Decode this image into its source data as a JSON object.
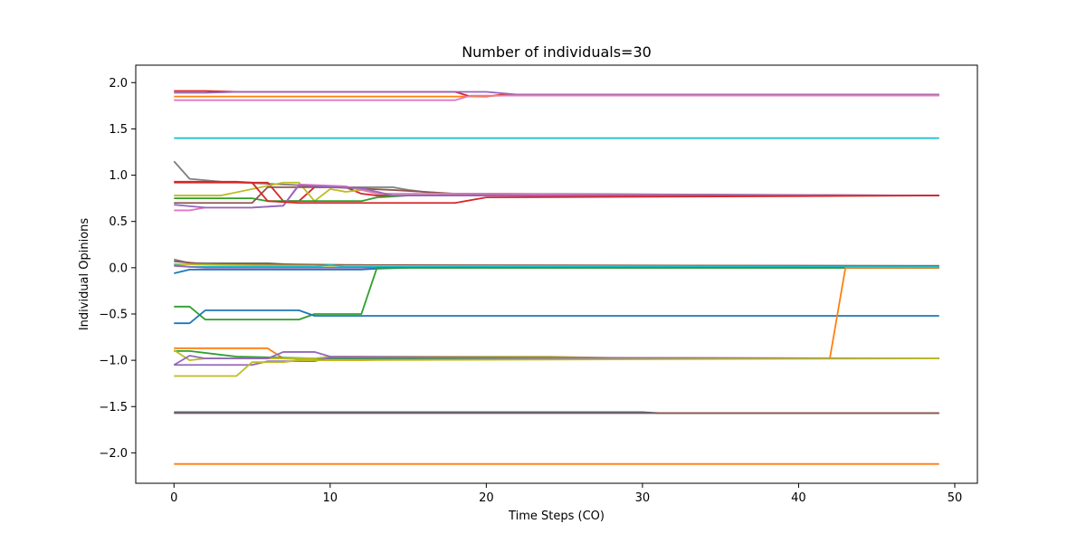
{
  "chart_data": {
    "type": "line",
    "title": "Number of individuals=30",
    "xlabel": "Time Steps (CO)",
    "ylabel": "Individual Opinions",
    "xlim": [
      -2.45,
      51.45
    ],
    "ylim": [
      -2.3285,
      2.1885
    ],
    "xticks": [
      0,
      10,
      20,
      30,
      40,
      50
    ],
    "yticks": [
      -2.0,
      -1.5,
      -1.0,
      -0.5,
      0.0,
      0.5,
      1.0,
      1.5,
      2.0
    ],
    "ytick_labels": [
      "−2.0",
      "−1.5",
      "−1.0",
      "−0.5",
      "0.0",
      "0.5",
      "1.0",
      "1.5",
      "2.0"
    ],
    "grid": false,
    "legend": "none",
    "series": [
      {
        "color": "#d62728",
        "points": [
          [
            0,
            1.91
          ],
          [
            2,
            1.91
          ],
          [
            4,
            1.9
          ],
          [
            18,
            1.9
          ],
          [
            19,
            1.85
          ],
          [
            20,
            1.85
          ],
          [
            21,
            1.87
          ],
          [
            49,
            1.87
          ]
        ]
      },
      {
        "color": "#9467bd",
        "points": [
          [
            0,
            1.89
          ],
          [
            2,
            1.89
          ],
          [
            4,
            1.9
          ],
          [
            20,
            1.9
          ],
          [
            22,
            1.87
          ],
          [
            49,
            1.87
          ]
        ]
      },
      {
        "color": "#ff7f0e",
        "points": [
          [
            0,
            1.85
          ],
          [
            19,
            1.85
          ],
          [
            21,
            1.86
          ],
          [
            49,
            1.86
          ]
        ]
      },
      {
        "color": "#e377c2",
        "points": [
          [
            0,
            1.81
          ],
          [
            18,
            1.81
          ],
          [
            19,
            1.86
          ],
          [
            49,
            1.86
          ]
        ]
      },
      {
        "color": "#17becf",
        "points": [
          [
            0,
            1.4
          ],
          [
            49,
            1.4
          ]
        ]
      },
      {
        "color": "#7f7f7f",
        "points": [
          [
            0,
            1.15
          ],
          [
            1,
            0.96
          ],
          [
            3,
            0.93
          ],
          [
            11,
            0.87
          ],
          [
            14,
            0.87
          ],
          [
            15,
            0.84
          ],
          [
            17,
            0.8
          ],
          [
            20,
            0.8
          ],
          [
            49,
            0.78
          ]
        ]
      },
      {
        "color": "#d62728",
        "points": [
          [
            0,
            0.92
          ],
          [
            6,
            0.92
          ],
          [
            7,
            0.72
          ],
          [
            8,
            0.72
          ],
          [
            9,
            0.87
          ],
          [
            11,
            0.87
          ],
          [
            12,
            0.8
          ],
          [
            13,
            0.78
          ],
          [
            49,
            0.78
          ]
        ]
      },
      {
        "color": "#bcbd22",
        "points": [
          [
            0,
            0.78
          ],
          [
            3,
            0.78
          ],
          [
            7,
            0.92
          ],
          [
            8,
            0.92
          ],
          [
            9,
            0.72
          ],
          [
            10,
            0.85
          ],
          [
            11,
            0.82
          ],
          [
            12,
            0.84
          ],
          [
            13,
            0.82
          ],
          [
            14,
            0.78
          ],
          [
            49,
            0.78
          ]
        ]
      },
      {
        "color": "#2ca02c",
        "points": [
          [
            0,
            0.75
          ],
          [
            5,
            0.75
          ],
          [
            6,
            0.72
          ],
          [
            8,
            0.72
          ],
          [
            12,
            0.72
          ],
          [
            13,
            0.76
          ],
          [
            15,
            0.78
          ],
          [
            49,
            0.78
          ]
        ]
      },
      {
        "color": "#8c564b",
        "points": [
          [
            0,
            0.7
          ],
          [
            5,
            0.7
          ],
          [
            6,
            0.87
          ],
          [
            10,
            0.87
          ],
          [
            14,
            0.84
          ],
          [
            18,
            0.8
          ],
          [
            49,
            0.78
          ]
        ]
      },
      {
        "color": "#e377c2",
        "points": [
          [
            0,
            0.62
          ],
          [
            1,
            0.62
          ],
          [
            2,
            0.65
          ],
          [
            5,
            0.65
          ],
          [
            7,
            0.67
          ],
          [
            8,
            0.9
          ],
          [
            11,
            0.88
          ],
          [
            13,
            0.8
          ],
          [
            21,
            0.8
          ],
          [
            26,
            0.79
          ],
          [
            49,
            0.78
          ]
        ]
      },
      {
        "color": "#9467bd",
        "points": [
          [
            0,
            0.68
          ],
          [
            2,
            0.65
          ],
          [
            5,
            0.65
          ],
          [
            7,
            0.67
          ],
          [
            8,
            0.89
          ],
          [
            12,
            0.86
          ],
          [
            14,
            0.78
          ],
          [
            49,
            0.78
          ]
        ]
      },
      {
        "color": "#d62728",
        "points": [
          [
            0,
            0.93
          ],
          [
            4,
            0.93
          ],
          [
            5,
            0.92
          ],
          [
            6,
            0.72
          ],
          [
            8,
            0.7
          ],
          [
            18,
            0.7
          ],
          [
            20,
            0.76
          ],
          [
            49,
            0.78
          ]
        ]
      },
      {
        "color": "#7f7f7f",
        "points": [
          [
            0,
            0.09
          ],
          [
            1,
            0.05
          ],
          [
            6,
            0.05
          ],
          [
            8,
            0.03
          ],
          [
            12,
            0.03
          ],
          [
            13,
            0.02
          ],
          [
            49,
            0.02
          ]
        ]
      },
      {
        "color": "#8c564b",
        "points": [
          [
            0,
            0.07
          ],
          [
            2,
            0.04
          ],
          [
            6,
            0.04
          ],
          [
            11,
            0.03
          ],
          [
            49,
            0.02
          ]
        ]
      },
      {
        "color": "#bcbd22",
        "points": [
          [
            0,
            0.04
          ],
          [
            3,
            0.03
          ],
          [
            10,
            0.02
          ],
          [
            49,
            0.01
          ]
        ]
      },
      {
        "color": "#17becf",
        "points": [
          [
            0,
            0.03
          ],
          [
            1,
            0.01
          ],
          [
            9,
            0.01
          ],
          [
            10,
            0.03
          ],
          [
            11,
            0.01
          ],
          [
            49,
            0.01
          ]
        ]
      },
      {
        "color": "#9467bd",
        "points": [
          [
            0,
            0.02
          ],
          [
            2,
            0.0
          ],
          [
            49,
            0.0
          ]
        ]
      },
      {
        "color": "#1f77b4",
        "points": [
          [
            0,
            -0.06
          ],
          [
            1,
            -0.02
          ],
          [
            12,
            -0.02
          ],
          [
            13,
            -0.01
          ],
          [
            15,
            0.0
          ],
          [
            49,
            0.0
          ]
        ]
      },
      {
        "color": "#2ca02c",
        "points": [
          [
            0,
            -0.42
          ],
          [
            1,
            -0.42
          ],
          [
            2,
            -0.56
          ],
          [
            8,
            -0.56
          ],
          [
            9,
            -0.5
          ],
          [
            12,
            -0.5
          ],
          [
            13,
            0.0
          ],
          [
            49,
            0.0
          ]
        ]
      },
      {
        "color": "#1f77b4",
        "points": [
          [
            0,
            -0.6
          ],
          [
            1,
            -0.6
          ],
          [
            2,
            -0.46
          ],
          [
            8,
            -0.46
          ],
          [
            9,
            -0.52
          ],
          [
            49,
            -0.52
          ]
        ]
      },
      {
        "color": "#ff7f0e",
        "points": [
          [
            0,
            -0.87
          ],
          [
            6,
            -0.87
          ],
          [
            7,
            -0.98
          ],
          [
            10,
            -1.0
          ],
          [
            12,
            -1.0
          ],
          [
            14,
            -0.99
          ],
          [
            20,
            -0.98
          ],
          [
            42,
            -0.98
          ],
          [
            43,
            0.0
          ],
          [
            49,
            0.0
          ]
        ]
      },
      {
        "color": "#2ca02c",
        "points": [
          [
            0,
            -0.9
          ],
          [
            1,
            -0.9
          ],
          [
            4,
            -0.96
          ],
          [
            9,
            -0.98
          ],
          [
            20,
            -0.98
          ],
          [
            49,
            -0.98
          ]
        ]
      },
      {
        "color": "#bcbd22",
        "points": [
          [
            0,
            -0.89
          ],
          [
            1,
            -1.0
          ],
          [
            2,
            -0.98
          ],
          [
            9,
            -0.98
          ],
          [
            10,
            -0.96
          ],
          [
            24,
            -0.96
          ],
          [
            30,
            -0.98
          ],
          [
            49,
            -0.98
          ]
        ]
      },
      {
        "color": "#9467bd",
        "points": [
          [
            0,
            -1.05
          ],
          [
            1,
            -0.95
          ],
          [
            2,
            -0.98
          ],
          [
            6,
            -0.98
          ],
          [
            7,
            -0.91
          ],
          [
            9,
            -0.91
          ],
          [
            10,
            -0.96
          ],
          [
            20,
            -0.97
          ],
          [
            49,
            -0.98
          ]
        ]
      },
      {
        "color": "#9467bd",
        "points": [
          [
            0,
            -1.05
          ],
          [
            5,
            -1.05
          ],
          [
            6,
            -1.01
          ],
          [
            9,
            -1.01
          ],
          [
            10,
            -0.97
          ],
          [
            49,
            -0.98
          ]
        ]
      },
      {
        "color": "#bcbd22",
        "points": [
          [
            0,
            -1.17
          ],
          [
            4,
            -1.17
          ],
          [
            5,
            -1.02
          ],
          [
            7,
            -1.02
          ],
          [
            8,
            -1.0
          ],
          [
            49,
            -0.98
          ]
        ]
      },
      {
        "color": "#1f77b4",
        "points": [
          [
            0,
            -1.56
          ],
          [
            30,
            -1.56
          ],
          [
            31,
            -1.57
          ],
          [
            49,
            -1.57
          ]
        ]
      },
      {
        "color": "#8c564b",
        "points": [
          [
            0,
            -1.57
          ],
          [
            49,
            -1.57
          ]
        ]
      },
      {
        "color": "#ff7f0e",
        "points": [
          [
            0,
            -2.12
          ],
          [
            49,
            -2.12
          ]
        ]
      }
    ]
  }
}
